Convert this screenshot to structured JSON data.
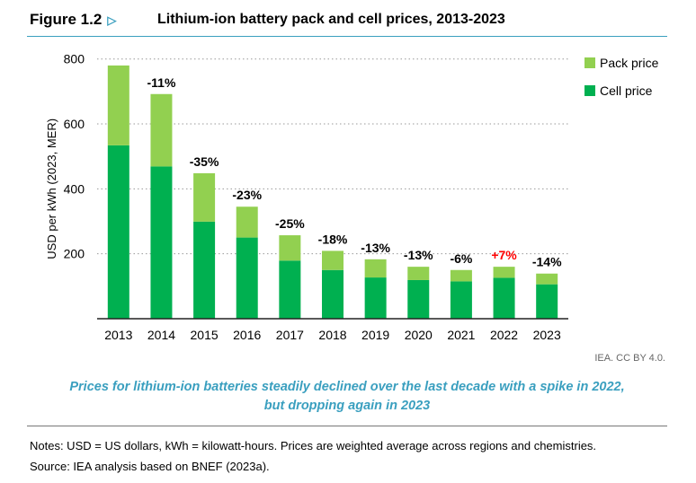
{
  "header": {
    "figure_label": "Figure 1.2",
    "title": "Lithium-ion battery pack and cell prices, 2013-2023"
  },
  "chart_data": {
    "type": "bar",
    "stacked": true,
    "title": "Lithium-ion battery pack and cell prices, 2013-2023",
    "ylabel": "USD per kWh (2023, MER)",
    "xlabel": "",
    "ylim": [
      0,
      800
    ],
    "yticks": [
      200,
      400,
      600,
      800
    ],
    "grid": "horizontal dotted",
    "legend_placement": "top-right",
    "categories": [
      "2013",
      "2014",
      "2015",
      "2016",
      "2017",
      "2018",
      "2019",
      "2020",
      "2021",
      "2022",
      "2023"
    ],
    "series": [
      {
        "name": "Cell price",
        "color": "#00b050",
        "values": [
          534,
          469,
          299,
          250,
          179,
          150,
          127,
          119,
          115,
          126,
          106
        ]
      },
      {
        "name": "Pack price",
        "color": "#92d050",
        "values": [
          246,
          223,
          149,
          95,
          78,
          59,
          56,
          41,
          35,
          34,
          33
        ]
      }
    ],
    "totals": [
      780,
      692,
      448,
      345,
      257,
      209,
      183,
      160,
      150,
      160,
      139
    ],
    "annotations": [
      "",
      "-11%",
      "-35%",
      "-23%",
      "-25%",
      "-18%",
      "-13%",
      "-13%",
      "-6%",
      "+7%",
      "-14%"
    ],
    "annotation_colors": {
      "decrease": "#000000",
      "increase": "#ff0000"
    }
  },
  "credit": "IEA. CC BY 4.0.",
  "caption_line1": "Prices for lithium-ion batteries steadily declined over the last decade with a spike in 2022,",
  "caption_line2": "but dropping again in 2023",
  "notes": "Notes: USD = US dollars, kWh = kilowatt-hours. Prices are weighted average across regions and chemistries.",
  "source": "Source: IEA analysis based on BNEF (2023a)."
}
